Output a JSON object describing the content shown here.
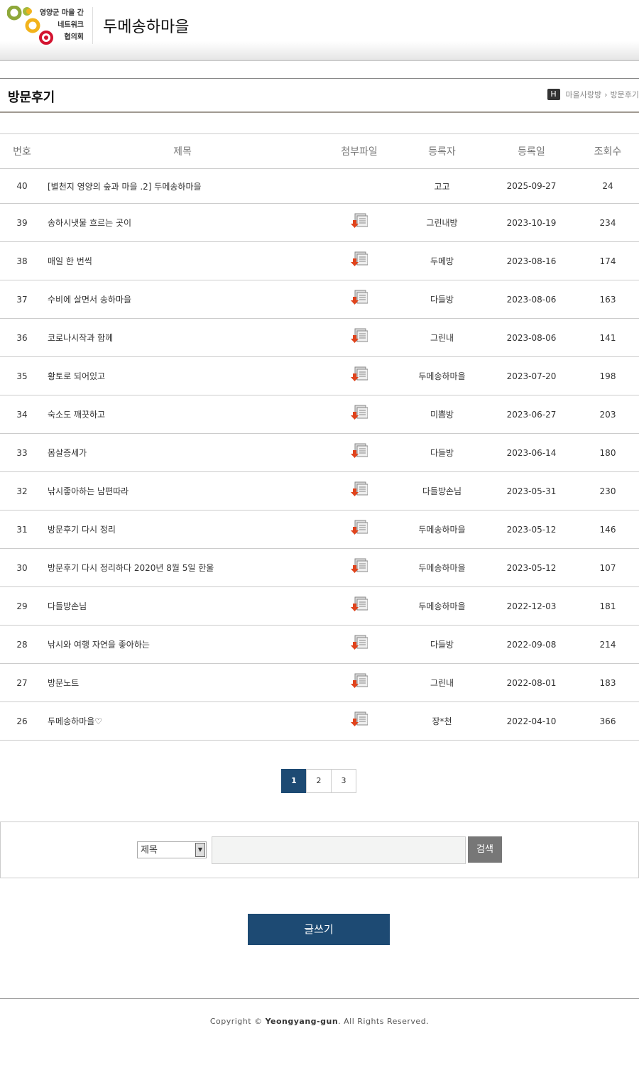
{
  "header": {
    "logo_lines": [
      "영양군 마을 간",
      "네트워크",
      "협의회"
    ],
    "site_title": "두메송하마을"
  },
  "page": {
    "title": "방문후기",
    "home_icon": "H",
    "breadcrumb": [
      "마을사랑방",
      "방문후기"
    ]
  },
  "table": {
    "headers": [
      "번호",
      "제목",
      "첨부파일",
      "등록자",
      "등록일",
      "조회수"
    ],
    "rows": [
      [
        40,
        "[별천지 영양의 숲과 마을 .2] 두메송하마을",
        false,
        "고고",
        "2025-09-27",
        24
      ],
      [
        39,
        "송하시냇물 흐르는 곳이",
        true,
        "그린내방",
        "2023-10-19",
        234
      ],
      [
        38,
        "매일 한 번씩",
        true,
        "두메방",
        "2023-08-16",
        174
      ],
      [
        37,
        "수비에 살면서 송하마을",
        true,
        "다들방",
        "2023-08-06",
        163
      ],
      [
        36,
        "코로나시작과 함께",
        true,
        "그린내",
        "2023-08-06",
        141
      ],
      [
        35,
        "황토로 되어있고",
        true,
        "두메송하마을",
        "2023-07-20",
        198
      ],
      [
        34,
        "숙소도 깨끗하고",
        true,
        "미쁨방",
        "2023-06-27",
        203
      ],
      [
        33,
        "몸살증세가",
        true,
        "다들방",
        "2023-06-14",
        180
      ],
      [
        32,
        "낚시좋아하는 남편따라",
        true,
        "다들방손님",
        "2023-05-31",
        230
      ],
      [
        31,
        "방문후기 다시 정리",
        true,
        "두메송하마을",
        "2023-05-12",
        146
      ],
      [
        30,
        "방문후기 다시 정리하다 2020년 8월 5일 한울",
        true,
        "두메송하마을",
        "2023-05-12",
        107
      ],
      [
        29,
        "다들방손님",
        true,
        "두메송하마을",
        "2022-12-03",
        181
      ],
      [
        28,
        "낚시와 여행 자연을 좋아하는",
        true,
        "다들방",
        "2022-09-08",
        214
      ],
      [
        27,
        "방문노트",
        true,
        "그린내",
        "2022-08-01",
        183
      ],
      [
        26,
        "두메송하마을♡",
        true,
        "장*천",
        "2022-04-10",
        366
      ]
    ]
  },
  "pagination": {
    "pages": [
      1,
      2,
      3
    ],
    "current": 1
  },
  "search": {
    "select_option": "제목",
    "button": "검색"
  },
  "write_button": "글쓰기",
  "footer": {
    "prefix": "Copyright © ",
    "brand": "Yeongyang-gun",
    "suffix": ". All Rights Reserved."
  }
}
